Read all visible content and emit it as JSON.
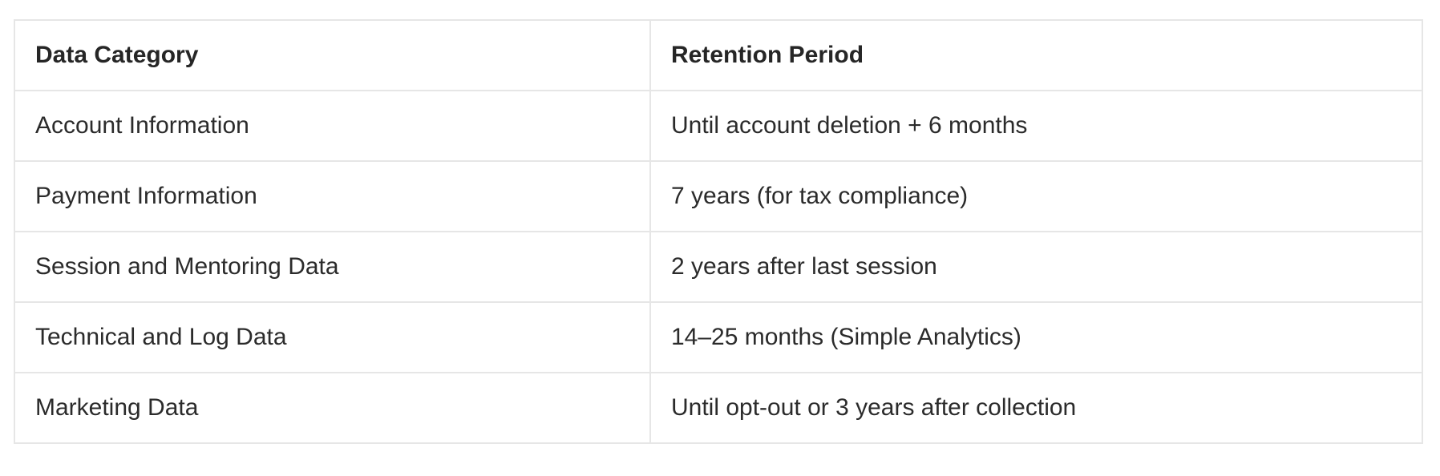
{
  "table": {
    "headers": [
      "Data Category",
      "Retention Period"
    ],
    "rows": [
      [
        "Account Information",
        "Until account deletion + 6 months"
      ],
      [
        "Payment Information",
        "7 years (for tax compliance)"
      ],
      [
        "Session and Mentoring Data",
        "2 years after last session"
      ],
      [
        "Technical and Log Data",
        "14–25 months (Simple Analytics)"
      ],
      [
        "Marketing Data",
        "Until opt-out or 3 years after collection"
      ]
    ]
  }
}
